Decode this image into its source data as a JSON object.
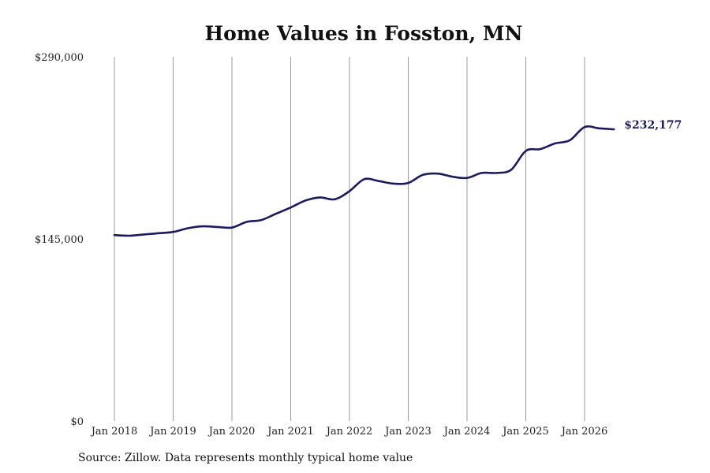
{
  "chart_data": {
    "type": "line",
    "title": "Home Values in Fosston, MN",
    "xlabel": "",
    "ylabel": "",
    "ylim": [
      0,
      290000
    ],
    "y_ticks": [
      "$290,000",
      "$145,000",
      "$0"
    ],
    "y_tick_values": [
      290000,
      145000,
      0
    ],
    "x_ticks": [
      "Jan 2018",
      "Jan 2019",
      "Jan 2020",
      "Jan 2021",
      "Jan 2022",
      "Jan 2023",
      "Jan 2024",
      "Jan 2025",
      "Jan 2026"
    ],
    "x_range": [
      "2018-01",
      "2026-07"
    ],
    "grid": "vertical lines at each January",
    "line_color": "#1a1a5e",
    "end_label": "$232,177",
    "series": [
      {
        "x": [
          "2018-01",
          "2018-04",
          "2018-07",
          "2018-10",
          "2019-01",
          "2019-04",
          "2019-07",
          "2019-10",
          "2020-01",
          "2020-04",
          "2020-07",
          "2020-10",
          "2021-01",
          "2021-04",
          "2021-07",
          "2021-10",
          "2022-01",
          "2022-04",
          "2022-07",
          "2022-10",
          "2023-01",
          "2023-04",
          "2023-07",
          "2023-10",
          "2024-01",
          "2024-04",
          "2024-07",
          "2024-10",
          "2025-01",
          "2025-04",
          "2025-07",
          "2025-10",
          "2026-01",
          "2026-04",
          "2026-07"
        ],
        "values": [
          148000,
          147500,
          148500,
          149500,
          150500,
          153500,
          155000,
          154500,
          154000,
          158500,
          160000,
          165000,
          170000,
          175500,
          178000,
          176500,
          183000,
          192500,
          191000,
          189000,
          189500,
          196000,
          197000,
          194500,
          193500,
          197500,
          197500,
          200000,
          215000,
          216500,
          221000,
          223500,
          234000,
          233000,
          232177
        ]
      }
    ]
  },
  "source": "Source: Zillow. Data represents monthly typical home value"
}
